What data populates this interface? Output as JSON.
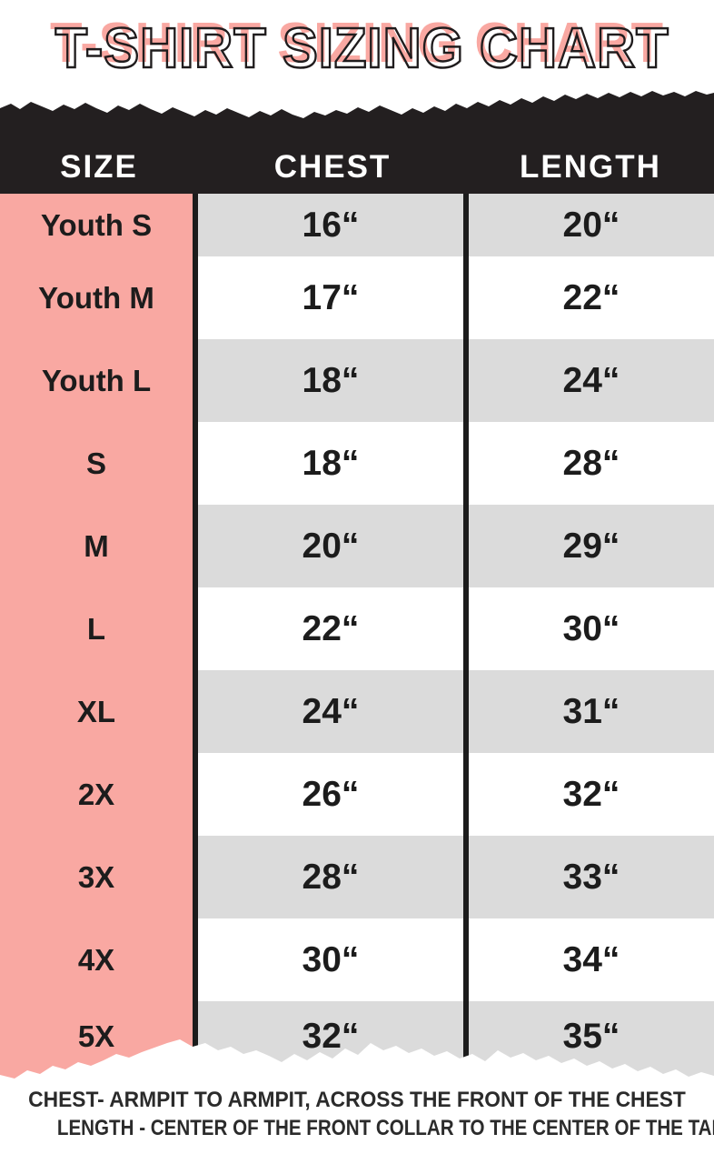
{
  "title": "T-SHIRT SIZING CHART",
  "chart_data": {
    "type": "table",
    "title": "T-SHIRT SIZING CHART",
    "columns": [
      "SIZE",
      "CHEST",
      "LENGTH"
    ],
    "rows": [
      [
        "Youth S",
        "16“",
        "20“"
      ],
      [
        "Youth M",
        "17“",
        "22“"
      ],
      [
        "Youth L",
        "18“",
        "24“"
      ],
      [
        "S",
        "18“",
        "28“"
      ],
      [
        "M",
        "20“",
        "29“"
      ],
      [
        "L",
        "22“",
        "30“"
      ],
      [
        "XL",
        "24“",
        "31“"
      ],
      [
        "2X",
        "26“",
        "32“"
      ],
      [
        "3X",
        "28“",
        "33“"
      ],
      [
        "4X",
        "30“",
        "34“"
      ],
      [
        "5X",
        "32“",
        "35“"
      ]
    ],
    "notes": [
      "CHEST- ARMPIT TO ARMPIT, ACROSS THE FRONT OF THE CHEST",
      "LENGTH - CENTER OF THE FRONT COLLAR TO THE CENTER OF THE TAIL"
    ],
    "layout_hints": {
      "striped_rows": "odd rows gray",
      "size_column_color": "pink",
      "header_style": "black torn-paper band"
    }
  },
  "footer": {
    "line1": "CHEST- ARMPIT TO ARMPIT, ACROSS THE FRONT OF THE CHEST",
    "line2": "LENGTH - CENTER OF THE FRONT COLLAR TO THE CENTER OF THE TAIL"
  },
  "colors": {
    "pink": "#F9A8A2",
    "band_black": "#231F20",
    "divider_black": "#1C1C1C",
    "stripe_gray": "#DBDBDB",
    "text_black": "#1C1C1C",
    "footer_text": "#2B2B2B",
    "background": "#FFFFFF"
  }
}
